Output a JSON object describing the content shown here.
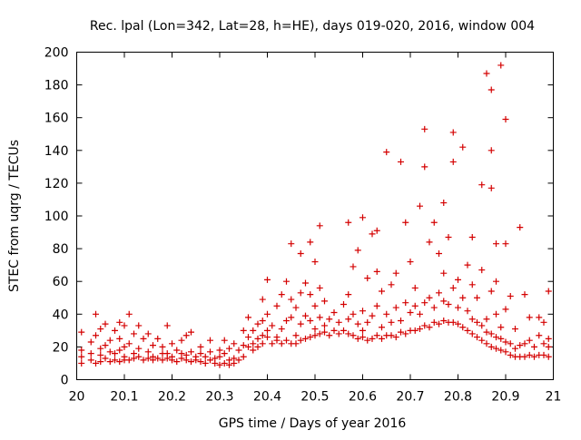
{
  "chart_data": {
    "type": "scatter",
    "title": "Rec. lpal (Lon=342, Lat=28, h=HE), days 019-020, 2016, window 004",
    "xlabel": "GPS time / Days of year 2016",
    "ylabel": "STEC from uqrg / TECUs",
    "xlim": [
      20,
      21
    ],
    "ylim": [
      0,
      200
    ],
    "x_ticks": [
      "20",
      "20.1",
      "20.2",
      "20.3",
      "20.4",
      "20.5",
      "20.6",
      "20.7",
      "20.8",
      "20.9",
      "21"
    ],
    "y_ticks": [
      "0",
      "20",
      "40",
      "60",
      "80",
      "100",
      "120",
      "140",
      "160",
      "180",
      "200"
    ],
    "grid": false,
    "legend": "none",
    "marker": "plus",
    "color": "#d40000",
    "points": [
      [
        20.01,
        10
      ],
      [
        20.01,
        14
      ],
      [
        20.01,
        18
      ],
      [
        20.01,
        29
      ],
      [
        20.03,
        12
      ],
      [
        20.03,
        16
      ],
      [
        20.03,
        23
      ],
      [
        20.04,
        10
      ],
      [
        20.04,
        27
      ],
      [
        20.04,
        40
      ],
      [
        20.05,
        11
      ],
      [
        20.05,
        15
      ],
      [
        20.05,
        19
      ],
      [
        20.05,
        31
      ],
      [
        20.06,
        13
      ],
      [
        20.06,
        21
      ],
      [
        20.06,
        34
      ],
      [
        20.07,
        11
      ],
      [
        20.07,
        17
      ],
      [
        20.07,
        24
      ],
      [
        20.08,
        12
      ],
      [
        20.08,
        16
      ],
      [
        20.08,
        30
      ],
      [
        20.09,
        11
      ],
      [
        20.09,
        18
      ],
      [
        20.09,
        25
      ],
      [
        20.09,
        35
      ],
      [
        20.1,
        12
      ],
      [
        20.1,
        14
      ],
      [
        20.1,
        20
      ],
      [
        20.1,
        33
      ],
      [
        20.11,
        12
      ],
      [
        20.11,
        22
      ],
      [
        20.11,
        40
      ],
      [
        20.12,
        13
      ],
      [
        20.12,
        16
      ],
      [
        20.12,
        28
      ],
      [
        20.13,
        14
      ],
      [
        20.13,
        19
      ],
      [
        20.13,
        33
      ],
      [
        20.14,
        12
      ],
      [
        20.14,
        25
      ],
      [
        20.15,
        13
      ],
      [
        20.15,
        17
      ],
      [
        20.15,
        28
      ],
      [
        20.16,
        12
      ],
      [
        20.16,
        14
      ],
      [
        20.16,
        21
      ],
      [
        20.17,
        13
      ],
      [
        20.17,
        25
      ],
      [
        20.18,
        12
      ],
      [
        20.18,
        16
      ],
      [
        20.18,
        20
      ],
      [
        20.19,
        13
      ],
      [
        20.19,
        16
      ],
      [
        20.19,
        33
      ],
      [
        20.2,
        12
      ],
      [
        20.2,
        14
      ],
      [
        20.2,
        22
      ],
      [
        20.21,
        11
      ],
      [
        20.21,
        18
      ],
      [
        20.22,
        13
      ],
      [
        20.22,
        16
      ],
      [
        20.22,
        24
      ],
      [
        20.23,
        12
      ],
      [
        20.23,
        15
      ],
      [
        20.23,
        27
      ],
      [
        20.24,
        11
      ],
      [
        20.24,
        17
      ],
      [
        20.24,
        29
      ],
      [
        20.25,
        12
      ],
      [
        20.25,
        14
      ],
      [
        20.26,
        11
      ],
      [
        20.26,
        16
      ],
      [
        20.26,
        20
      ],
      [
        20.27,
        10
      ],
      [
        20.27,
        14
      ],
      [
        20.28,
        12
      ],
      [
        20.28,
        17
      ],
      [
        20.28,
        24
      ],
      [
        20.29,
        10
      ],
      [
        20.29,
        13
      ],
      [
        20.3,
        9
      ],
      [
        20.3,
        14
      ],
      [
        20.3,
        18
      ],
      [
        20.31,
        10
      ],
      [
        20.31,
        16
      ],
      [
        20.31,
        24
      ],
      [
        20.32,
        9
      ],
      [
        20.32,
        12
      ],
      [
        20.32,
        19
      ],
      [
        20.33,
        10
      ],
      [
        20.33,
        13
      ],
      [
        20.33,
        22
      ],
      [
        20.34,
        12
      ],
      [
        20.34,
        18
      ],
      [
        20.35,
        14
      ],
      [
        20.35,
        21
      ],
      [
        20.35,
        30
      ],
      [
        20.36,
        20
      ],
      [
        20.36,
        26
      ],
      [
        20.36,
        38
      ],
      [
        20.37,
        18
      ],
      [
        20.37,
        22
      ],
      [
        20.37,
        30
      ],
      [
        20.38,
        20
      ],
      [
        20.38,
        25
      ],
      [
        20.38,
        34
      ],
      [
        20.39,
        22
      ],
      [
        20.39,
        27
      ],
      [
        20.39,
        36
      ],
      [
        20.39,
        49
      ],
      [
        20.4,
        26
      ],
      [
        20.4,
        30
      ],
      [
        20.4,
        40
      ],
      [
        20.4,
        61
      ],
      [
        20.41,
        22
      ],
      [
        20.41,
        33
      ],
      [
        20.42,
        24
      ],
      [
        20.42,
        26
      ],
      [
        20.42,
        45
      ],
      [
        20.43,
        22
      ],
      [
        20.43,
        31
      ],
      [
        20.43,
        52
      ],
      [
        20.44,
        24
      ],
      [
        20.44,
        36
      ],
      [
        20.44,
        60
      ],
      [
        20.45,
        22
      ],
      [
        20.45,
        38
      ],
      [
        20.45,
        49
      ],
      [
        20.45,
        83
      ],
      [
        20.46,
        22
      ],
      [
        20.46,
        27
      ],
      [
        20.46,
        44
      ],
      [
        20.47,
        24
      ],
      [
        20.47,
        34
      ],
      [
        20.47,
        53
      ],
      [
        20.47,
        77
      ],
      [
        20.48,
        25
      ],
      [
        20.48,
        39
      ],
      [
        20.48,
        59
      ],
      [
        20.49,
        26
      ],
      [
        20.49,
        36
      ],
      [
        20.49,
        52
      ],
      [
        20.49,
        84
      ],
      [
        20.5,
        27
      ],
      [
        20.5,
        31
      ],
      [
        20.5,
        45
      ],
      [
        20.5,
        72
      ],
      [
        20.51,
        28
      ],
      [
        20.51,
        38
      ],
      [
        20.51,
        56
      ],
      [
        20.51,
        94
      ],
      [
        20.52,
        29
      ],
      [
        20.52,
        33
      ],
      [
        20.52,
        48
      ],
      [
        20.53,
        27
      ],
      [
        20.53,
        37
      ],
      [
        20.54,
        30
      ],
      [
        20.54,
        41
      ],
      [
        20.55,
        28
      ],
      [
        20.55,
        35
      ],
      [
        20.56,
        30
      ],
      [
        20.56,
        46
      ],
      [
        20.57,
        28
      ],
      [
        20.57,
        37
      ],
      [
        20.57,
        52
      ],
      [
        20.57,
        96
      ],
      [
        20.58,
        27
      ],
      [
        20.58,
        40
      ],
      [
        20.58,
        69
      ],
      [
        20.59,
        25
      ],
      [
        20.59,
        34
      ],
      [
        20.59,
        79
      ],
      [
        20.6,
        26
      ],
      [
        20.6,
        30
      ],
      [
        20.6,
        42
      ],
      [
        20.6,
        99
      ],
      [
        20.61,
        24
      ],
      [
        20.61,
        35
      ],
      [
        20.61,
        62
      ],
      [
        20.62,
        25
      ],
      [
        20.62,
        39
      ],
      [
        20.62,
        89
      ],
      [
        20.63,
        27
      ],
      [
        20.63,
        45
      ],
      [
        20.63,
        66
      ],
      [
        20.63,
        91
      ],
      [
        20.64,
        25
      ],
      [
        20.64,
        32
      ],
      [
        20.64,
        54
      ],
      [
        20.65,
        27
      ],
      [
        20.65,
        40
      ],
      [
        20.65,
        139
      ],
      [
        20.66,
        27
      ],
      [
        20.66,
        35
      ],
      [
        20.66,
        58
      ],
      [
        20.67,
        26
      ],
      [
        20.67,
        44
      ],
      [
        20.67,
        65
      ],
      [
        20.68,
        29
      ],
      [
        20.68,
        36
      ],
      [
        20.68,
        133
      ],
      [
        20.69,
        28
      ],
      [
        20.69,
        47
      ],
      [
        20.69,
        96
      ],
      [
        20.7,
        30
      ],
      [
        20.7,
        41
      ],
      [
        20.7,
        72
      ],
      [
        20.71,
        30
      ],
      [
        20.71,
        45
      ],
      [
        20.71,
        56
      ],
      [
        20.72,
        31
      ],
      [
        20.72,
        40
      ],
      [
        20.72,
        106
      ],
      [
        20.73,
        33
      ],
      [
        20.73,
        47
      ],
      [
        20.73,
        130
      ],
      [
        20.73,
        153
      ],
      [
        20.74,
        32
      ],
      [
        20.74,
        50
      ],
      [
        20.74,
        84
      ],
      [
        20.75,
        35
      ],
      [
        20.75,
        44
      ],
      [
        20.75,
        96
      ],
      [
        20.76,
        34
      ],
      [
        20.76,
        53
      ],
      [
        20.76,
        77
      ],
      [
        20.77,
        36
      ],
      [
        20.77,
        48
      ],
      [
        20.77,
        65
      ],
      [
        20.77,
        108
      ],
      [
        20.78,
        35
      ],
      [
        20.78,
        46
      ],
      [
        20.78,
        87
      ],
      [
        20.79,
        35
      ],
      [
        20.79,
        56
      ],
      [
        20.79,
        133
      ],
      [
        20.79,
        151
      ],
      [
        20.8,
        34
      ],
      [
        20.8,
        44
      ],
      [
        20.8,
        61
      ],
      [
        20.81,
        32
      ],
      [
        20.81,
        50
      ],
      [
        20.81,
        142
      ],
      [
        20.82,
        30
      ],
      [
        20.82,
        42
      ],
      [
        20.82,
        70
      ],
      [
        20.83,
        28
      ],
      [
        20.83,
        37
      ],
      [
        20.83,
        58
      ],
      [
        20.83,
        87
      ],
      [
        20.84,
        26
      ],
      [
        20.84,
        35
      ],
      [
        20.84,
        50
      ],
      [
        20.85,
        24
      ],
      [
        20.85,
        33
      ],
      [
        20.85,
        67
      ],
      [
        20.85,
        119
      ],
      [
        20.86,
        22
      ],
      [
        20.86,
        29
      ],
      [
        20.86,
        37
      ],
      [
        20.86,
        187
      ],
      [
        20.87,
        20
      ],
      [
        20.87,
        28
      ],
      [
        20.87,
        54
      ],
      [
        20.87,
        117
      ],
      [
        20.87,
        140
      ],
      [
        20.87,
        177
      ],
      [
        20.88,
        19
      ],
      [
        20.88,
        26
      ],
      [
        20.88,
        40
      ],
      [
        20.88,
        60
      ],
      [
        20.88,
        83
      ],
      [
        20.89,
        18
      ],
      [
        20.89,
        25
      ],
      [
        20.89,
        32
      ],
      [
        20.89,
        192
      ],
      [
        20.9,
        17
      ],
      [
        20.9,
        23
      ],
      [
        20.9,
        43
      ],
      [
        20.9,
        83
      ],
      [
        20.9,
        159
      ],
      [
        20.91,
        15
      ],
      [
        20.91,
        22
      ],
      [
        20.91,
        51
      ],
      [
        20.92,
        14
      ],
      [
        20.92,
        19
      ],
      [
        20.92,
        31
      ],
      [
        20.93,
        14
      ],
      [
        20.93,
        21
      ],
      [
        20.93,
        93
      ],
      [
        20.94,
        14
      ],
      [
        20.94,
        22
      ],
      [
        20.94,
        52
      ],
      [
        20.95,
        15
      ],
      [
        20.95,
        24
      ],
      [
        20.95,
        38
      ],
      [
        20.96,
        14
      ],
      [
        20.96,
        20
      ],
      [
        20.97,
        15
      ],
      [
        20.97,
        27
      ],
      [
        20.97,
        38
      ],
      [
        20.98,
        15
      ],
      [
        20.98,
        22
      ],
      [
        20.98,
        35
      ],
      [
        20.99,
        14
      ],
      [
        20.99,
        20
      ],
      [
        20.99,
        54
      ],
      [
        20.99,
        25
      ]
    ]
  }
}
